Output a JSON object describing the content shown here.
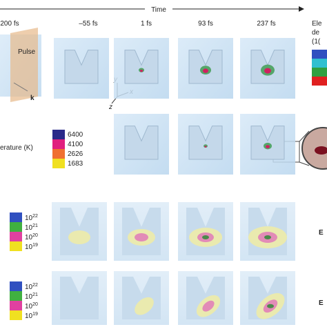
{
  "header": {
    "time_label": "Time",
    "frames": [
      "200 fs",
      "–55 fs",
      "1 fs",
      "93 fs",
      "237 fs"
    ]
  },
  "pulse_panel": {
    "pulse_label": "Pulse",
    "k_label": "k"
  },
  "axes_labels": {
    "y": "y",
    "x": "x",
    "z": "z"
  },
  "electron_legend": {
    "title_lines": [
      "Ele",
      "de",
      "(1("
    ]
  },
  "temperature_legend": {
    "title": "erature (K)",
    "levels": [
      "6400",
      "4100",
      "2626",
      "1683"
    ]
  },
  "density_legend_1": {
    "levels": [
      {
        "base": "10",
        "exp": "22"
      },
      {
        "base": "10",
        "exp": "21"
      },
      {
        "base": "10",
        "exp": "20"
      },
      {
        "base": "10",
        "exp": "19"
      }
    ]
  },
  "density_legend_2": {
    "levels": [
      {
        "base": "10",
        "exp": "22"
      },
      {
        "base": "10",
        "exp": "21"
      },
      {
        "base": "10",
        "exp": "20"
      },
      {
        "base": "10",
        "exp": "19"
      }
    ]
  },
  "row_3_label": "E",
  "row_4_label": "E"
}
